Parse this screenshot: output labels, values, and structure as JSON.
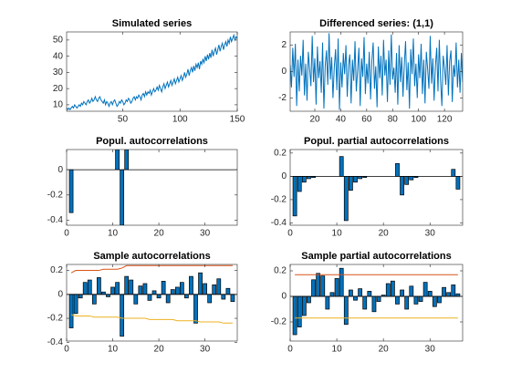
{
  "chart_data": [
    {
      "type": "line",
      "title": "Simulated series",
      "color": "#0072BD",
      "x": [
        1,
        2,
        3,
        4,
        5,
        6,
        7,
        8,
        9,
        10,
        11,
        12,
        13,
        14,
        15,
        16,
        17,
        18,
        19,
        20,
        21,
        22,
        23,
        24,
        25,
        26,
        27,
        28,
        29,
        30,
        31,
        32,
        33,
        34,
        35,
        36,
        37,
        38,
        39,
        40,
        41,
        42,
        43,
        44,
        45,
        46,
        47,
        48,
        49,
        50,
        51,
        52,
        53,
        54,
        55,
        56,
        57,
        58,
        59,
        60,
        61,
        62,
        63,
        64,
        65,
        66,
        67,
        68,
        69,
        70,
        71,
        72,
        73,
        74,
        75,
        76,
        77,
        78,
        79,
        80,
        81,
        82,
        83,
        84,
        85,
        86,
        87,
        88,
        89,
        90,
        91,
        92,
        93,
        94,
        95,
        96,
        97,
        98,
        99,
        100,
        101,
        102,
        103,
        104,
        105,
        106,
        107,
        108,
        109,
        110,
        111,
        112,
        113,
        114,
        115,
        116,
        117,
        118,
        119,
        120,
        121,
        122,
        123,
        124,
        125,
        126,
        127,
        128,
        129,
        130,
        131,
        132,
        133,
        134,
        135,
        136,
        137,
        138,
        139,
        140,
        141,
        142,
        143,
        144,
        145,
        146,
        147,
        148,
        149,
        150
      ],
      "values": [
        8,
        7,
        8,
        7,
        8,
        9,
        8,
        10,
        9,
        8,
        9,
        10,
        9,
        11,
        10,
        12,
        11,
        10,
        12,
        13,
        11,
        12,
        14,
        12,
        13,
        15,
        13,
        12,
        14,
        15,
        13,
        12,
        11,
        13,
        10,
        12,
        11,
        9,
        11,
        12,
        10,
        12,
        13,
        11,
        9,
        10,
        12,
        11,
        13,
        12,
        10,
        11,
        13,
        12,
        14,
        13,
        11,
        12,
        14,
        15,
        13,
        15,
        14,
        16,
        15,
        13,
        16,
        17,
        15,
        18,
        16,
        18,
        17,
        19,
        16,
        18,
        20,
        18,
        19,
        21,
        19,
        22,
        20,
        18,
        21,
        23,
        20,
        22,
        24,
        21,
        23,
        25,
        22,
        24,
        26,
        23,
        25,
        27,
        24,
        26,
        28,
        25,
        27,
        30,
        27,
        29,
        32,
        28,
        31,
        33,
        30,
        34,
        31,
        35,
        33,
        36,
        32,
        37,
        35,
        38,
        36,
        40,
        37,
        41,
        38,
        42,
        39,
        44,
        40,
        43,
        45,
        41,
        44,
        47,
        43,
        46,
        48,
        44,
        47,
        49,
        46,
        50,
        48,
        52,
        49,
        51,
        53,
        50,
        52,
        51
      ],
      "xlim": [
        1,
        150
      ],
      "xticks": [
        50,
        100,
        150
      ],
      "ylim": [
        6,
        55
      ],
      "yticks": [
        10,
        20,
        30,
        40,
        50
      ]
    },
    {
      "type": "line",
      "title": "Differenced series: (1,1)",
      "color": "#0072BD",
      "x": [
        1,
        2,
        3,
        4,
        5,
        6,
        7,
        8,
        9,
        10,
        11,
        12,
        13,
        14,
        15,
        16,
        17,
        18,
        19,
        20,
        21,
        22,
        23,
        24,
        25,
        26,
        27,
        28,
        29,
        30,
        31,
        32,
        33,
        34,
        35,
        36,
        37,
        38,
        39,
        40,
        41,
        42,
        43,
        44,
        45,
        46,
        47,
        48,
        49,
        50,
        51,
        52,
        53,
        54,
        55,
        56,
        57,
        58,
        59,
        60,
        61,
        62,
        63,
        64,
        65,
        66,
        67,
        68,
        69,
        70,
        71,
        72,
        73,
        74,
        75,
        76,
        77,
        78,
        79,
        80,
        81,
        82,
        83,
        84,
        85,
        86,
        87,
        88,
        89,
        90,
        91,
        92,
        93,
        94,
        95,
        96,
        97,
        98,
        99,
        100,
        101,
        102,
        103,
        104,
        105,
        106,
        107,
        108,
        109,
        110,
        111,
        112,
        113,
        114,
        115,
        116,
        117,
        118,
        119,
        120,
        121,
        122,
        123,
        124,
        125,
        126,
        127,
        128,
        129,
        130,
        131,
        132,
        133,
        134
      ],
      "values": [
        0.5,
        -1.2,
        1.8,
        -0.4,
        2.1,
        -2.6,
        0.9,
        -1.5,
        1.2,
        -0.3,
        2.4,
        -1.8,
        0.6,
        -2.2,
        1.5,
        0.2,
        -1.1,
        2.7,
        -0.8,
        1.0,
        -2.5,
        1.9,
        -0.5,
        0.8,
        -1.6,
        2.2,
        -2.8,
        0.4,
        1.6,
        -1.0,
        2.9,
        -0.6,
        1.1,
        -2.0,
        0.3,
        1.7,
        -1.4,
        2.5,
        -2.9,
        0.7,
        -1.2,
        1.4,
        -0.2,
        2.0,
        -1.9,
        0.5,
        1.3,
        -2.4,
        0.9,
        -0.7,
        2.3,
        -1.5,
        0.1,
        1.8,
        -2.6,
        1.0,
        -0.4,
        2.6,
        -1.7,
        0.6,
        -0.9,
        1.5,
        -2.1,
        0.8,
        2.2,
        -1.3,
        0.4,
        -2.7,
        1.9,
        -0.5,
        1.2,
        -1.8,
        2.4,
        -0.3,
        0.9,
        -2.3,
        1.6,
        -1.0,
        2.8,
        -0.6,
        0.3,
        -1.6,
        1.4,
        -2.5,
        2.0,
        -0.8,
        1.1,
        -1.9,
        0.5,
        2.3,
        -1.4,
        0.7,
        -2.8,
        1.7,
        -0.2,
        2.5,
        -1.1,
        0.6,
        -2.0,
        1.3,
        -0.5,
        2.1,
        -1.7,
        0.9,
        -2.4,
        1.5,
        0.2,
        -1.3,
        2.7,
        -0.9,
        1.0,
        -2.2,
        0.4,
        1.8,
        -1.5,
        2.4,
        -0.7,
        -2.6,
        1.2,
        0.3,
        -1.0,
        2.0,
        -1.8,
        0.8,
        1.6,
        -2.3,
        0.5,
        -0.4,
        2.2,
        -1.2,
        0.9,
        -1.6,
        1.4,
        -0.8
      ],
      "xlim": [
        1,
        134
      ],
      "xticks": [
        20,
        40,
        60,
        80,
        100,
        120
      ],
      "ylim": [
        -3,
        3
      ],
      "yticks": [
        -2,
        0,
        2
      ]
    },
    {
      "type": "bar",
      "title": "Popul. autocorrelations",
      "color": "#0072BD",
      "x": [
        1,
        2,
        3,
        4,
        5,
        6,
        7,
        8,
        9,
        10,
        11,
        12,
        13,
        14,
        15,
        16,
        17,
        18,
        19,
        20,
        21,
        22,
        23,
        24,
        25,
        26,
        27,
        28,
        29,
        30,
        31,
        32,
        33,
        34,
        35,
        36
      ],
      "values": [
        -0.34,
        0,
        0,
        0,
        0,
        0,
        0,
        0,
        0,
        0,
        0.16,
        -0.44,
        0.16,
        0,
        0,
        0,
        0,
        0,
        0,
        0,
        0,
        0,
        0,
        0,
        0,
        0,
        0,
        0,
        0,
        0,
        0,
        0,
        0,
        0,
        0,
        0
      ],
      "xlim": [
        0,
        37
      ],
      "xticks": [
        0,
        10,
        20,
        30
      ],
      "ylim": [
        -0.44,
        0.16
      ],
      "yticks": [
        -0.4,
        -0.2,
        0
      ]
    },
    {
      "type": "bar",
      "title": "Popul. partial autocorrelations",
      "color": "#0072BD",
      "x": [
        1,
        2,
        3,
        4,
        5,
        6,
        7,
        8,
        9,
        10,
        11,
        12,
        13,
        14,
        15,
        16,
        17,
        18,
        19,
        20,
        21,
        22,
        23,
        24,
        25,
        26,
        27,
        28,
        29,
        30,
        31,
        32,
        33,
        34,
        35,
        36
      ],
      "values": [
        -0.34,
        -0.13,
        -0.05,
        -0.02,
        -0.01,
        0,
        0,
        0,
        0,
        0,
        0.17,
        -0.38,
        -0.12,
        -0.05,
        -0.02,
        -0.01,
        0,
        0,
        0,
        0,
        0,
        0,
        0.11,
        -0.16,
        -0.07,
        -0.03,
        -0.01,
        0,
        0,
        0,
        0,
        0,
        0,
        0,
        0.06,
        -0.11
      ],
      "xlim": [
        0,
        37
      ],
      "xticks": [
        0,
        10,
        20,
        30
      ],
      "ylim": [
        -0.42,
        0.23
      ],
      "yticks": [
        -0.4,
        -0.2,
        0,
        0.2
      ]
    },
    {
      "type": "bar",
      "title": "Sample autocorrelations",
      "color": "#0072BD",
      "x": [
        1,
        2,
        3,
        4,
        5,
        6,
        7,
        8,
        9,
        10,
        11,
        12,
        13,
        14,
        15,
        16,
        17,
        18,
        19,
        20,
        21,
        22,
        23,
        24,
        25,
        26,
        27,
        28,
        29,
        30,
        31,
        32,
        33,
        34,
        35,
        36
      ],
      "values": [
        -0.28,
        -0.16,
        -0.03,
        0.1,
        0.12,
        -0.08,
        0.14,
        0.02,
        -0.02,
        0.06,
        0.1,
        -0.35,
        0.15,
        0.12,
        -0.08,
        0.07,
        0.09,
        -0.05,
        0.03,
        -0.03,
        0.11,
        -0.07,
        0.04,
        0.06,
        0.1,
        -0.03,
        0.15,
        -0.24,
        0.18,
        0.09,
        -0.07,
        0.08,
        0.13,
        -0.04,
        0.05,
        -0.06
      ],
      "lines": [
        {
          "color": "#D95319",
          "values": [
            0.18,
            0.2,
            0.2,
            0.2,
            0.2,
            0.2,
            0.2,
            0.21,
            0.21,
            0.21,
            0.21,
            0.22,
            0.24,
            0.24,
            0.24,
            0.24,
            0.24,
            0.24,
            0.24,
            0.24,
            0.24,
            0.24,
            0.24,
            0.24,
            0.24,
            0.24,
            0.24,
            0.24,
            0.24,
            0.24,
            0.24,
            0.24,
            0.24,
            0.24,
            0.24,
            0.24
          ]
        },
        {
          "color": "#EDB120",
          "values": [
            -0.17,
            -0.18,
            -0.18,
            -0.18,
            -0.18,
            -0.19,
            -0.19,
            -0.19,
            -0.19,
            -0.19,
            -0.19,
            -0.2,
            -0.2,
            -0.2,
            -0.2,
            -0.2,
            -0.2,
            -0.21,
            -0.21,
            -0.21,
            -0.21,
            -0.21,
            -0.21,
            -0.22,
            -0.22,
            -0.22,
            -0.22,
            -0.22,
            -0.23,
            -0.23,
            -0.23,
            -0.23,
            -0.23,
            -0.24,
            -0.24,
            -0.24
          ]
        }
      ],
      "xlim": [
        0,
        37
      ],
      "xticks": [
        0,
        10,
        20,
        30
      ],
      "ylim": [
        -0.39,
        0.25
      ],
      "yticks": [
        -0.4,
        -0.2,
        0,
        0.2
      ]
    },
    {
      "type": "bar",
      "title": "Sample partial autocorrelations",
      "color": "#0072BD",
      "x": [
        1,
        2,
        3,
        4,
        5,
        6,
        7,
        8,
        9,
        10,
        11,
        12,
        13,
        14,
        15,
        16,
        17,
        18,
        19,
        20,
        21,
        22,
        23,
        24,
        25,
        26,
        27,
        28,
        29,
        30,
        31,
        32,
        33,
        34,
        35,
        36
      ],
      "values": [
        -0.3,
        -0.24,
        -0.15,
        -0.05,
        0.13,
        0.18,
        0.16,
        -0.1,
        0.03,
        0.14,
        0.22,
        -0.22,
        0.05,
        -0.03,
        0.06,
        -0.1,
        0.04,
        -0.12,
        -0.04,
        0.01,
        0.1,
        0.12,
        -0.06,
        0.05,
        -0.1,
        0.08,
        -0.06,
        -0.04,
        0.11,
        0.04,
        -0.08,
        -0.05,
        0.07,
        0.03,
        0.09,
        0.02
      ],
      "lines": [
        {
          "color": "#D95319",
          "values": [
            0.17,
            0.17,
            0.17,
            0.17,
            0.17,
            0.17,
            0.17,
            0.17,
            0.17,
            0.17,
            0.17,
            0.17,
            0.17,
            0.17,
            0.17,
            0.17,
            0.17,
            0.17,
            0.17,
            0.17,
            0.17,
            0.17,
            0.17,
            0.17,
            0.17,
            0.17,
            0.17,
            0.17,
            0.17,
            0.17,
            0.17,
            0.17,
            0.17,
            0.17,
            0.17,
            0.17
          ]
        },
        {
          "color": "#EDB120",
          "values": [
            -0.17,
            -0.17,
            -0.17,
            -0.17,
            -0.17,
            -0.17,
            -0.17,
            -0.17,
            -0.17,
            -0.17,
            -0.17,
            -0.17,
            -0.17,
            -0.17,
            -0.17,
            -0.17,
            -0.17,
            -0.17,
            -0.17,
            -0.17,
            -0.17,
            -0.17,
            -0.17,
            -0.17,
            -0.17,
            -0.17,
            -0.17,
            -0.17,
            -0.17,
            -0.17,
            -0.17,
            -0.17,
            -0.17,
            -0.17,
            -0.17,
            -0.17
          ]
        }
      ],
      "xlim": [
        0,
        37
      ],
      "xticks": [
        0,
        10,
        20,
        30
      ],
      "ylim": [
        -0.35,
        0.25
      ],
      "yticks": [
        -0.2,
        0,
        0.2
      ]
    }
  ]
}
